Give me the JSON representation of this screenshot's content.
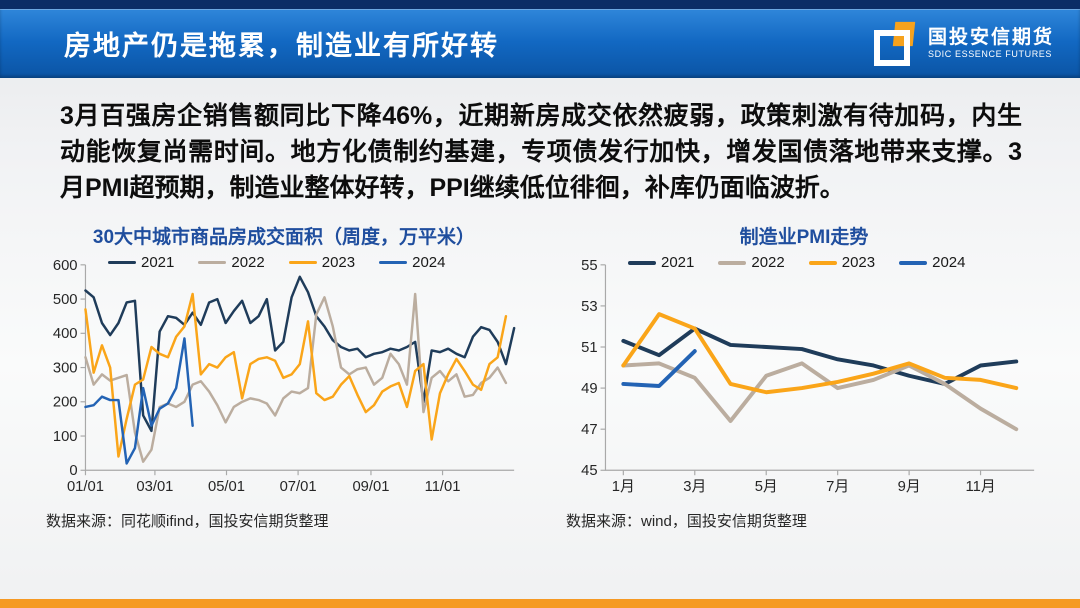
{
  "header": {
    "title": "房地产仍是拖累，制造业有所好转",
    "logo_cn": "国投安信期货",
    "logo_en": "SDIC ESSENCE FUTURES"
  },
  "summary": "3月百强房企销售额同比下降46%，近期新房成交依然疲弱，政策刺激有待加码，内生动能恢复尚需时间。地方化债制约基建，专项债发行加快，增发国债落地带来支撑。3月PMI超预期，制造业整体好转，PPI继续低位徘徊，补库仍面临波折。",
  "colors": {
    "accent_orange": "#F59A23",
    "top_strip_navy": "#0B2D66",
    "header_blue": "#1268C2",
    "chart_title_blue": "#1F4E9E",
    "series_2021": "#1F3C5A",
    "series_2022": "#BBAD9F",
    "series_2023": "#FAA519",
    "series_2024": "#2363B4"
  },
  "chart_data": [
    {
      "type": "line",
      "title": "30大中城市商品房成交面积（周度，万平米）",
      "source": "数据来源：同花顺ifind，国投安信期货整理",
      "xlabel": "",
      "ylabel": "",
      "ylim": [
        0,
        600
      ],
      "y_step": 100,
      "grid": false,
      "legend_position": "top",
      "x_mode": "edge",
      "x_slots": 53,
      "stroke": 2.5,
      "x_ticks": [
        {
          "label": "01/01",
          "f": 0.0
        },
        {
          "label": "03/01",
          "f": 0.162
        },
        {
          "label": "05/01",
          "f": 0.329
        },
        {
          "label": "07/01",
          "f": 0.496
        },
        {
          "label": "09/01",
          "f": 0.666
        },
        {
          "label": "11/01",
          "f": 0.833
        }
      ],
      "series": [
        {
          "name": "2021",
          "color": "#1F3C5A",
          "values": [
            525,
            505,
            430,
            395,
            430,
            490,
            495,
            160,
            115,
            405,
            450,
            445,
            425,
            460,
            425,
            490,
            500,
            430,
            465,
            495,
            430,
            450,
            500,
            350,
            375,
            505,
            565,
            520,
            450,
            420,
            380,
            360,
            350,
            355,
            330,
            340,
            345,
            355,
            350,
            360,
            375,
            200,
            350,
            345,
            355,
            340,
            330,
            390,
            418,
            410,
            375,
            310,
            415
          ]
        },
        {
          "name": "2022",
          "color": "#BBAD9F",
          "values": [
            330,
            250,
            280,
            262,
            270,
            278,
            110,
            25,
            60,
            185,
            195,
            185,
            200,
            250,
            260,
            230,
            190,
            140,
            185,
            200,
            210,
            205,
            195,
            160,
            210,
            230,
            225,
            240,
            455,
            505,
            420,
            300,
            280,
            295,
            300,
            250,
            270,
            340,
            310,
            250,
            515,
            170,
            270,
            290,
            260,
            280,
            215,
            220,
            255,
            270,
            300,
            255
          ]
        },
        {
          "name": "2023",
          "color": "#FAA519",
          "values": [
            470,
            285,
            365,
            300,
            40,
            150,
            250,
            265,
            360,
            340,
            330,
            390,
            420,
            515,
            280,
            310,
            300,
            330,
            345,
            210,
            310,
            325,
            330,
            320,
            270,
            280,
            310,
            435,
            225,
            205,
            215,
            250,
            275,
            220,
            170,
            190,
            230,
            245,
            255,
            185,
            290,
            310,
            90,
            225,
            280,
            325,
            290,
            250,
            235,
            310,
            330,
            450
          ]
        },
        {
          "name": "2024",
          "color": "#2363B4",
          "values": [
            185,
            190,
            215,
            205,
            205,
            20,
            65,
            240,
            130,
            180,
            195,
            240,
            385,
            130
          ]
        }
      ]
    },
    {
      "type": "line",
      "title": "制造业PMI走势",
      "source": "数据来源：wind，国投安信期货整理",
      "xlabel": "",
      "ylabel": "",
      "ylim": [
        45,
        55
      ],
      "y_step": 2,
      "grid": false,
      "legend_position": "top",
      "x_mode": "band",
      "x_slots": 12,
      "stroke": 4,
      "x_ticks": [
        {
          "label": "1月",
          "slot": 0
        },
        {
          "label": "3月",
          "slot": 2
        },
        {
          "label": "5月",
          "slot": 4
        },
        {
          "label": "7月",
          "slot": 6
        },
        {
          "label": "9月",
          "slot": 8
        },
        {
          "label": "11月",
          "slot": 10
        }
      ],
      "series": [
        {
          "name": "2021",
          "color": "#1F3C5A",
          "values": [
            51.3,
            50.6,
            51.9,
            51.1,
            51.0,
            50.9,
            50.4,
            50.1,
            49.6,
            49.2,
            50.1,
            50.3
          ]
        },
        {
          "name": "2022",
          "color": "#BBAD9F",
          "values": [
            50.1,
            50.2,
            49.5,
            47.4,
            49.6,
            50.2,
            49.0,
            49.4,
            50.1,
            49.2,
            48.0,
            47.0
          ]
        },
        {
          "name": "2023",
          "color": "#FAA519",
          "values": [
            50.1,
            52.6,
            51.9,
            49.2,
            48.8,
            49.0,
            49.3,
            49.7,
            50.2,
            49.5,
            49.4,
            49.0
          ]
        },
        {
          "name": "2024",
          "color": "#2363B4",
          "values": [
            49.2,
            49.1,
            50.8
          ]
        }
      ]
    }
  ]
}
